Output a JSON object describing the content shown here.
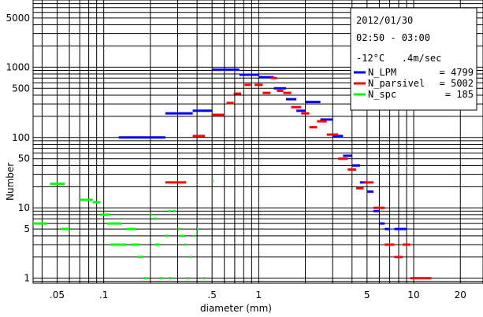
{
  "chart_data": {
    "type": "scatter",
    "xscale": "log",
    "yscale": "log",
    "xlim": [
      0.035,
      28
    ],
    "ylim": [
      0.85,
      9000
    ],
    "xlabel": "diameter (mm)",
    "ylabel": "Number",
    "grid": true,
    "x_ticks": [
      {
        "value": 0.05,
        "label": ".05"
      },
      {
        "value": 0.1,
        "label": ".1"
      },
      {
        "value": 0.5,
        "label": ".5"
      },
      {
        "value": 1,
        "label": "1"
      },
      {
        "value": 5,
        "label": "5"
      },
      {
        "value": 10,
        "label": "10"
      },
      {
        "value": 20,
        "label": "20"
      }
    ],
    "y_ticks": [
      {
        "value": 1,
        "label": "1"
      },
      {
        "value": 5,
        "label": "5"
      },
      {
        "value": 10,
        "label": "10"
      },
      {
        "value": 50,
        "label": "50"
      },
      {
        "value": 100,
        "label": "100"
      },
      {
        "value": 500,
        "label": "500"
      },
      {
        "value": 1000,
        "label": "1000"
      },
      {
        "value": 5000,
        "label": "5000"
      }
    ],
    "legend": {
      "position": "top-right",
      "date": "2012/01/30",
      "time_range": "02:50 - 03:00",
      "conditions": "-12°C   .4m/sec"
    },
    "series": [
      {
        "name": "N_LPM",
        "count_label": "= 4799",
        "color": "#0000ff",
        "segments": [
          {
            "x": [
              0.125,
              0.25
            ],
            "y": 100
          },
          {
            "x": [
              0.25,
              0.375
            ],
            "y": 220
          },
          {
            "x": [
              0.375,
              0.5
            ],
            "y": 240
          },
          {
            "x": [
              0.5,
              0.75
            ],
            "y": 920
          },
          {
            "x": [
              0.75,
              1.0
            ],
            "y": 780
          },
          {
            "x": [
              1.0,
              1.25
            ],
            "y": 720
          },
          {
            "x": [
              1.25,
              1.5
            ],
            "y": 500
          },
          {
            "x": [
              1.5,
              1.75
            ],
            "y": 350
          },
          {
            "x": [
              1.75,
              2.0
            ],
            "y": 240
          },
          {
            "x": [
              2.0,
              2.5
            ],
            "y": 320
          },
          {
            "x": [
              2.5,
              3.0
            ],
            "y": 180
          },
          {
            "x": [
              3.0,
              3.5
            ],
            "y": 105
          },
          {
            "x": [
              3.5,
              4.0
            ],
            "y": 55
          },
          {
            "x": [
              4.0,
              4.5
            ],
            "y": 40
          },
          {
            "x": [
              4.5,
              5.0
            ],
            "y": 23
          },
          {
            "x": [
              5.0,
              5.5
            ],
            "y": 17
          },
          {
            "x": [
              5.5,
              6.0
            ],
            "y": 9
          },
          {
            "x": [
              6.0,
              6.5
            ],
            "y": 6
          },
          {
            "x": [
              6.5,
              7.0
            ],
            "y": 5
          },
          {
            "x": [
              7.5,
              9.0
            ],
            "y": 5
          }
        ]
      },
      {
        "name": "N_parsivel",
        "count_label": "= 5002",
        "color": "#ff0000",
        "segments": [
          {
            "x": [
              0.25,
              0.34
            ],
            "y": 23
          },
          {
            "x": [
              0.375,
              0.45
            ],
            "y": 105
          },
          {
            "x": [
              0.5,
              0.6
            ],
            "y": 210
          },
          {
            "x": [
              0.62,
              0.69
            ],
            "y": 310
          },
          {
            "x": [
              0.69,
              0.77
            ],
            "y": 420
          },
          {
            "x": [
              0.81,
              0.89
            ],
            "y": 560
          },
          {
            "x": [
              0.94,
              1.06
            ],
            "y": 560
          },
          {
            "x": [
              1.06,
              1.19
            ],
            "y": 430
          },
          {
            "x": [
              1.19,
              1.31
            ],
            "y": 700
          },
          {
            "x": [
              1.31,
              1.44
            ],
            "y": 460
          },
          {
            "x": [
              1.44,
              1.62
            ],
            "y": 430
          },
          {
            "x": [
              1.62,
              1.88
            ],
            "y": 270
          },
          {
            "x": [
              1.88,
              2.12
            ],
            "y": 220
          },
          {
            "x": [
              2.12,
              2.38
            ],
            "y": 140
          },
          {
            "x": [
              2.38,
              2.75
            ],
            "y": 170
          },
          {
            "x": [
              2.75,
              3.25
            ],
            "y": 110
          },
          {
            "x": [
              3.25,
              3.75
            ],
            "y": 50
          },
          {
            "x": [
              3.75,
              4.25
            ],
            "y": 35
          },
          {
            "x": [
              4.25,
              4.75
            ],
            "y": 19
          },
          {
            "x": [
              4.75,
              5.5
            ],
            "y": 23
          },
          {
            "x": [
              5.5,
              6.5
            ],
            "y": 10
          },
          {
            "x": [
              6.5,
              7.5
            ],
            "y": 3
          },
          {
            "x": [
              7.5,
              8.5
            ],
            "y": 2
          },
          {
            "x": [
              8.5,
              9.5
            ],
            "y": 3
          },
          {
            "x": [
              9.5,
              11.0
            ],
            "y": 1
          },
          {
            "x": [
              11.0,
              13.0
            ],
            "y": 1
          }
        ]
      },
      {
        "name": "N_spc",
        "count_label": "= 185",
        "color": "#00ff00",
        "segments": [
          {
            "x": [
              0.035,
              0.043
            ],
            "y": 6
          },
          {
            "x": [
              0.045,
              0.056
            ],
            "y": 22
          },
          {
            "x": [
              0.053,
              0.06
            ],
            "y": 5
          },
          {
            "x": [
              0.07,
              0.085
            ],
            "y": 13
          },
          {
            "x": [
              0.085,
              0.095
            ],
            "y": 12
          },
          {
            "x": [
              0.095,
              0.11
            ],
            "y": 8
          },
          {
            "x": [
              0.105,
              0.13
            ],
            "y": 6
          },
          {
            "x": [
              0.11,
              0.12
            ],
            "y": 3
          },
          {
            "x": [
              0.12,
              0.14
            ],
            "y": 3
          },
          {
            "x": [
              0.14,
              0.16
            ],
            "y": 5
          },
          {
            "x": [
              0.15,
              0.17
            ],
            "y": 3
          },
          {
            "x": [
              0.165,
              0.18
            ],
            "y": 2
          },
          {
            "x": [
              0.18,
              0.19
            ],
            "y": 1
          },
          {
            "x": [
              0.2,
              0.205
            ],
            "y": 8
          },
          {
            "x": [
              0.21,
              0.22
            ],
            "y": 7
          },
          {
            "x": [
              0.215,
              0.23
            ],
            "y": 3
          },
          {
            "x": [
              0.23,
              0.24
            ],
            "y": 1
          },
          {
            "x": [
              0.25,
              0.26
            ],
            "y": 4
          },
          {
            "x": [
              0.26,
              0.27
            ],
            "y": 9
          },
          {
            "x": [
              0.265,
              0.275
            ],
            "y": 1
          },
          {
            "x": [
              0.28,
              0.29
            ],
            "y": 9
          },
          {
            "x": [
              0.3,
              0.31
            ],
            "y": 5
          },
          {
            "x": [
              0.31,
              0.33
            ],
            "y": 4
          },
          {
            "x": [
              0.33,
              0.34
            ],
            "y": 3
          },
          {
            "x": [
              0.345,
              0.355
            ],
            "y": 1
          },
          {
            "x": [
              0.36,
              0.37
            ],
            "y": 2
          },
          {
            "x": [
              0.38,
              0.39
            ],
            "y": 4
          },
          {
            "x": [
              0.4,
              0.41
            ],
            "y": 5
          },
          {
            "x": [
              0.44,
              0.45
            ],
            "y": 1
          },
          {
            "x": [
              0.5,
              0.51
            ],
            "y": 24
          }
        ]
      }
    ]
  }
}
